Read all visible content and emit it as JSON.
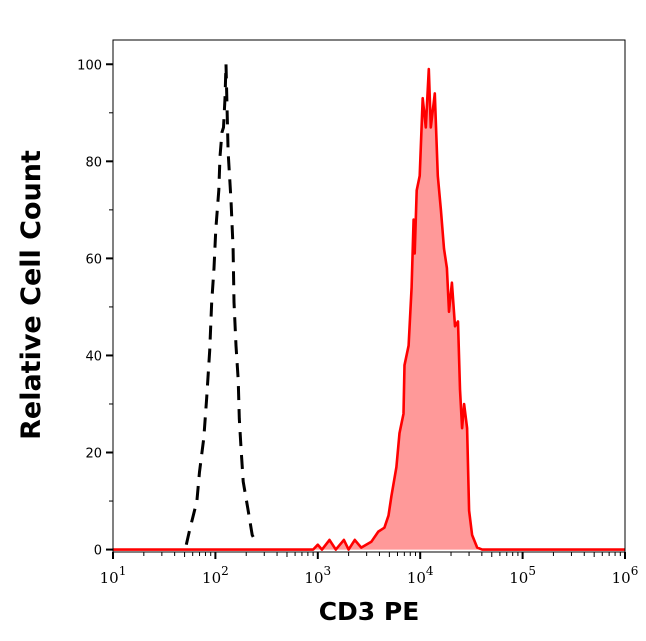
{
  "chart_data": {
    "type": "area",
    "title": "",
    "xlabel": "CD3 PE",
    "ylabel": "Relative Cell Count",
    "xscale": "log",
    "xlim": [
      10,
      1000000
    ],
    "ylim": [
      -0.5,
      105
    ],
    "grid": false,
    "legend": "none",
    "x_ticks": [
      {
        "base": "10",
        "exp": "1",
        "value": 10
      },
      {
        "base": "10",
        "exp": "2",
        "value": 100
      },
      {
        "base": "10",
        "exp": "3",
        "value": 1000
      },
      {
        "base": "10",
        "exp": "4",
        "value": 10000
      },
      {
        "base": "10",
        "exp": "5",
        "value": 100000
      },
      {
        "base": "10",
        "exp": "6",
        "value": 1000000
      }
    ],
    "y_ticks": [
      "0",
      "20",
      "40",
      "60",
      "80",
      "100"
    ],
    "series": [
      {
        "style": "dashed-line",
        "color": "#000000",
        "fill": null,
        "points": [
          [
            52,
            1
          ],
          [
            56,
            4
          ],
          [
            66,
            10
          ],
          [
            70,
            16
          ],
          [
            77,
            23
          ],
          [
            82,
            31
          ],
          [
            88,
            41
          ],
          [
            92,
            51
          ],
          [
            97,
            58
          ],
          [
            101,
            66
          ],
          [
            108,
            74
          ],
          [
            111,
            81
          ],
          [
            116,
            86
          ],
          [
            120,
            87
          ],
          [
            124,
            93
          ],
          [
            127,
            100
          ],
          [
            133,
            82
          ],
          [
            142,
            72
          ],
          [
            149,
            62
          ],
          [
            152,
            51
          ],
          [
            159,
            42
          ],
          [
            167,
            35
          ],
          [
            171,
            27
          ],
          [
            178,
            21
          ],
          [
            187,
            14
          ],
          [
            209,
            8
          ],
          [
            229,
            3
          ],
          [
            256,
            1
          ]
        ]
      },
      {
        "style": "solid-line",
        "color": "#ff0000",
        "fill": "#ff9999",
        "points": [
          [
            10,
            0
          ],
          [
            900,
            0
          ],
          [
            1000,
            1
          ],
          [
            1100,
            0
          ],
          [
            1300,
            2
          ],
          [
            1500,
            0
          ],
          [
            1800,
            2
          ],
          [
            2000,
            0
          ],
          [
            2300,
            2
          ],
          [
            2655,
            0.4
          ],
          [
            3327,
            1.6
          ],
          [
            3899,
            3.7
          ],
          [
            4467,
            4.5
          ],
          [
            4898,
            7
          ],
          [
            5236,
            11
          ],
          [
            5861,
            17
          ],
          [
            6281,
            24
          ],
          [
            6871,
            28
          ],
          [
            7031,
            38
          ],
          [
            7709,
            42
          ],
          [
            8241,
            54
          ],
          [
            8630,
            68
          ],
          [
            8831,
            61
          ],
          [
            9247,
            74
          ],
          [
            9886,
            77
          ],
          [
            10590,
            93
          ],
          [
            11330,
            87
          ],
          [
            12130,
            99
          ],
          [
            12680,
            87
          ],
          [
            13900,
            94
          ],
          [
            14860,
            77
          ],
          [
            15920,
            70
          ],
          [
            17060,
            62
          ],
          [
            18240,
            58
          ],
          [
            19100,
            49
          ],
          [
            20420,
            55
          ],
          [
            21880,
            46
          ],
          [
            23390,
            47
          ],
          [
            24490,
            33
          ],
          [
            25650,
            25
          ],
          [
            26850,
            30
          ],
          [
            28710,
            25
          ],
          [
            30060,
            8
          ],
          [
            32140,
            3
          ],
          [
            36060,
            0.4
          ],
          [
            40360,
            0
          ],
          [
            1000000,
            0
          ]
        ]
      }
    ]
  }
}
